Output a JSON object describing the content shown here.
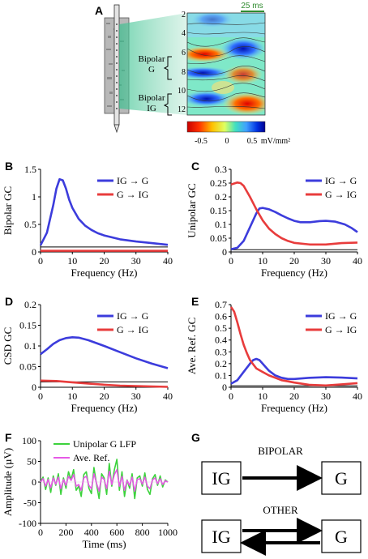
{
  "panels": {
    "A": {
      "letter": "A",
      "scale_bar": "25 ms",
      "depth_labels": [
        "2",
        "4",
        "6",
        "8",
        "10",
        "12"
      ],
      "bipolar_g": [
        "Bipolar",
        "G"
      ],
      "bipolar_ig": [
        "Bipolar",
        "IG"
      ],
      "colorbar_ticks": [
        "-0.5",
        "0",
        "0.5"
      ],
      "colorbar_unit": "mV/mm²",
      "colorbar_colors": [
        "#c80000",
        "#ff4000",
        "#ffc000",
        "#e0ff40",
        "#40e0c0",
        "#40a0ff",
        "#0030e0",
        "#000090"
      ]
    },
    "B": {
      "letter": "B"
    },
    "C": {
      "letter": "C"
    },
    "D": {
      "letter": "D"
    },
    "E": {
      "letter": "E"
    },
    "F": {
      "letter": "F"
    },
    "G": {
      "letter": "G",
      "bipolar_label": "BIPOLAR",
      "other_label": "OTHER",
      "left_box": "IG",
      "right_box": "G"
    }
  },
  "chart_data": [
    {
      "id": "B",
      "type": "line",
      "xlabel": "Frequency (Hz)",
      "ylabel": "Bipolar GC",
      "xlim": [
        0,
        40
      ],
      "ylim": [
        0,
        1.5
      ],
      "xticks": [
        "0",
        "10",
        "20",
        "30",
        "40"
      ],
      "yticks": [
        "0",
        "0.5",
        "1",
        "1.5"
      ],
      "threshold": 0.09,
      "series": [
        {
          "name": "IG → G",
          "color": "#3c3cdc",
          "x": [
            0,
            2,
            4,
            5,
            6,
            7,
            8,
            9,
            10,
            12,
            14,
            16,
            18,
            20,
            25,
            30,
            35,
            40
          ],
          "y": [
            0.12,
            0.35,
            0.85,
            1.15,
            1.32,
            1.3,
            1.15,
            0.95,
            0.8,
            0.6,
            0.48,
            0.4,
            0.34,
            0.3,
            0.23,
            0.19,
            0.16,
            0.13
          ]
        },
        {
          "name": "G → IG",
          "color": "#e83c3c",
          "x": [
            0,
            10,
            20,
            30,
            40
          ],
          "y": [
            0.02,
            0.02,
            0.02,
            0.02,
            0.02
          ]
        }
      ]
    },
    {
      "id": "C",
      "type": "line",
      "xlabel": "Frequency (Hz)",
      "ylabel": "Unipolar GC",
      "xlim": [
        0,
        40
      ],
      "ylim": [
        0,
        0.3
      ],
      "xticks": [
        "0",
        "10",
        "20",
        "30",
        "40"
      ],
      "yticks": [
        "0",
        "0.05",
        "0.1",
        "0.15",
        "0.2",
        "0.25",
        "0.3"
      ],
      "threshold": 0.008,
      "series": [
        {
          "name": "IG → G",
          "color": "#3c3cdc",
          "x": [
            0,
            2,
            4,
            6,
            8,
            9,
            10,
            12,
            14,
            16,
            18,
            20,
            22,
            25,
            28,
            30,
            33,
            36,
            38,
            40
          ],
          "y": [
            0.01,
            0.015,
            0.04,
            0.09,
            0.14,
            0.158,
            0.16,
            0.155,
            0.145,
            0.133,
            0.122,
            0.113,
            0.108,
            0.108,
            0.112,
            0.113,
            0.11,
            0.1,
            0.088,
            0.072
          ]
        },
        {
          "name": "G → IG",
          "color": "#e83c3c",
          "x": [
            0,
            2,
            3,
            4,
            6,
            8,
            10,
            12,
            14,
            16,
            18,
            20,
            25,
            30,
            35,
            40
          ],
          "y": [
            0.245,
            0.252,
            0.25,
            0.24,
            0.2,
            0.155,
            0.115,
            0.085,
            0.065,
            0.05,
            0.04,
            0.033,
            0.027,
            0.027,
            0.032,
            0.034
          ]
        }
      ]
    },
    {
      "id": "D",
      "type": "line",
      "xlabel": "Frequency (Hz)",
      "ylabel": "CSD GC",
      "xlim": [
        0,
        40
      ],
      "ylim": [
        0,
        0.2
      ],
      "xticks": [
        "0",
        "10",
        "20",
        "30",
        "40"
      ],
      "yticks": [
        "0",
        "0.05",
        "0.1",
        "0.15",
        "0.2"
      ],
      "threshold": 0.013,
      "series": [
        {
          "name": "IG → G",
          "color": "#3c3cdc",
          "x": [
            0,
            2,
            4,
            6,
            8,
            10,
            12,
            15,
            20,
            25,
            30,
            35,
            40
          ],
          "y": [
            0.08,
            0.092,
            0.105,
            0.114,
            0.119,
            0.121,
            0.12,
            0.114,
            0.1,
            0.085,
            0.07,
            0.057,
            0.046
          ]
        },
        {
          "name": "G → IG",
          "color": "#e83c3c",
          "x": [
            0,
            5,
            10,
            15,
            20,
            25,
            30,
            35,
            40
          ],
          "y": [
            0.016,
            0.015,
            0.012,
            0.009,
            0.006,
            0.004,
            0.003,
            0.002,
            0.001
          ]
        }
      ]
    },
    {
      "id": "E",
      "type": "line",
      "xlabel": "Frequency (Hz)",
      "ylabel": "Ave. Ref. GC",
      "xlim": [
        0,
        40
      ],
      "ylim": [
        0,
        0.7
      ],
      "xticks": [
        "0",
        "10",
        "20",
        "30",
        "40"
      ],
      "yticks": [
        "0",
        "0.1",
        "0.2",
        "0.3",
        "0.4",
        "0.5",
        "0.6",
        "0.7"
      ],
      "threshold": 0.012,
      "series": [
        {
          "name": "IG → G",
          "color": "#3c3cdc",
          "x": [
            0,
            2,
            4,
            6,
            7,
            8,
            9,
            10,
            12,
            14,
            16,
            18,
            20,
            25,
            30,
            35,
            40
          ],
          "y": [
            0.03,
            0.06,
            0.13,
            0.2,
            0.23,
            0.24,
            0.23,
            0.2,
            0.14,
            0.1,
            0.08,
            0.07,
            0.07,
            0.08,
            0.085,
            0.082,
            0.075
          ]
        },
        {
          "name": "G → IG",
          "color": "#e83c3c",
          "x": [
            0,
            1,
            2,
            3,
            4,
            5,
            6,
            8,
            10,
            12,
            14,
            16,
            18,
            20,
            25,
            30,
            35,
            40
          ],
          "y": [
            0.68,
            0.64,
            0.55,
            0.45,
            0.36,
            0.29,
            0.23,
            0.16,
            0.13,
            0.1,
            0.08,
            0.06,
            0.05,
            0.04,
            0.02,
            0.015,
            0.025,
            0.035
          ]
        }
      ]
    },
    {
      "id": "F",
      "type": "line",
      "xlabel": "Time (ms)",
      "ylabel": "Amplitude (µV)",
      "xlim": [
        0,
        1000
      ],
      "ylim": [
        -100,
        100
      ],
      "xticks": [
        "0",
        "200",
        "400",
        "600",
        "800",
        "1000"
      ],
      "yticks": [
        "-100",
        "-50",
        "0",
        "50",
        "100"
      ],
      "series": [
        {
          "name": "Unipolar G LFP",
          "color": "#3cd23c",
          "x": [
            0,
            20,
            40,
            60,
            80,
            100,
            120,
            140,
            160,
            180,
            200,
            220,
            240,
            260,
            280,
            300,
            320,
            340,
            360,
            380,
            400,
            420,
            440,
            460,
            480,
            500,
            520,
            540,
            560,
            580,
            600,
            620,
            640,
            660,
            680,
            700,
            720,
            740,
            760,
            780,
            800,
            820,
            840,
            860,
            880,
            900,
            920,
            940,
            960,
            980,
            1000
          ],
          "y": [
            0,
            12,
            -18,
            10,
            -25,
            15,
            -8,
            20,
            -30,
            10,
            -15,
            25,
            5,
            30,
            -20,
            -10,
            -35,
            18,
            25,
            -15,
            -28,
            35,
            -5,
            -40,
            20,
            10,
            -30,
            45,
            -10,
            30,
            55,
            -20,
            25,
            -35,
            5,
            -15,
            20,
            -40,
            10,
            15,
            -10,
            22,
            -18,
            -30,
            8,
            18,
            -8,
            15,
            -12,
            5,
            0
          ]
        },
        {
          "name": "Ave. Ref.",
          "color": "#e65ae6",
          "x": [
            0,
            20,
            40,
            60,
            80,
            100,
            120,
            140,
            160,
            180,
            200,
            220,
            240,
            260,
            280,
            300,
            320,
            340,
            360,
            380,
            400,
            420,
            440,
            460,
            480,
            500,
            520,
            540,
            560,
            580,
            600,
            620,
            640,
            660,
            680,
            700,
            720,
            740,
            760,
            780,
            800,
            820,
            840,
            860,
            880,
            900,
            920,
            940,
            960,
            980,
            1000
          ],
          "y": [
            0,
            8,
            -10,
            6,
            -14,
            10,
            -5,
            12,
            -16,
            6,
            -8,
            14,
            4,
            18,
            -10,
            -6,
            -20,
            10,
            14,
            -8,
            -16,
            20,
            -3,
            -22,
            12,
            6,
            -16,
            26,
            -6,
            18,
            30,
            -10,
            14,
            -20,
            4,
            -8,
            12,
            -22,
            6,
            8,
            -5,
            12,
            -10,
            -16,
            5,
            10,
            -4,
            8,
            -6,
            3,
            0
          ]
        }
      ]
    }
  ]
}
